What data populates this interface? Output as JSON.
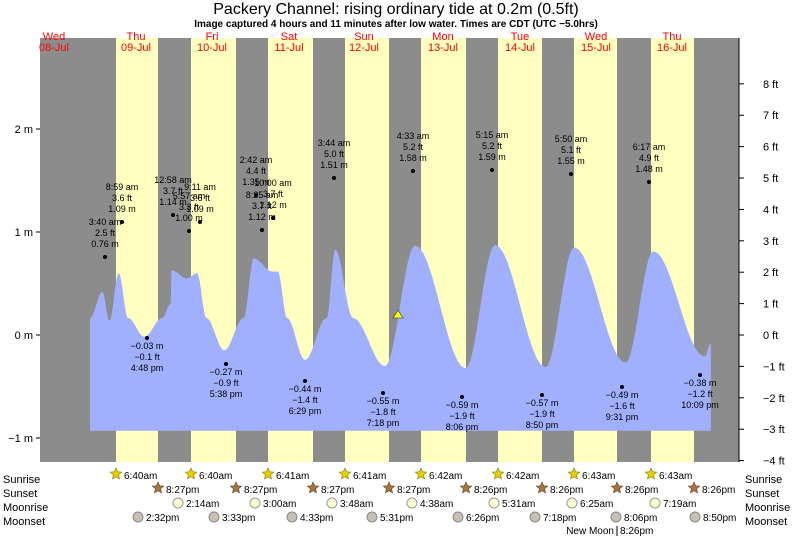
{
  "title": "Packery Channel: rising  ordinary tide at 0.2m (0.5ft)",
  "subtitle": "Image captured 4 hours and 11 minutes after low water. Times are CDT (UTC −5.0hrs)",
  "colors": {
    "night": "#8c8c8c",
    "day": "#ffffc0",
    "tide": "#a0b0ff",
    "date": "#ff0000",
    "marker": "#ffff00"
  },
  "days": [
    {
      "dow": "Wed",
      "date": "08-Jul"
    },
    {
      "dow": "Thu",
      "date": "09-Jul"
    },
    {
      "dow": "Fri",
      "date": "10-Jul"
    },
    {
      "dow": "Sat",
      "date": "11-Jul"
    },
    {
      "dow": "Sun",
      "date": "12-Jul"
    },
    {
      "dow": "Mon",
      "date": "13-Jul"
    },
    {
      "dow": "Tue",
      "date": "14-Jul"
    },
    {
      "dow": "Wed",
      "date": "15-Jul"
    },
    {
      "dow": "Thu",
      "date": "16-Jul"
    }
  ],
  "labels": {
    "sunrise": "Sunrise",
    "sunset": "Sunset",
    "moonrise": "Moonrise",
    "moonset": "Moonset",
    "new_moon": "New Moon",
    "new_moon_time": "8:26pm"
  },
  "sunrise": [
    "6:40am",
    "6:40am",
    "6:41am",
    "6:41am",
    "6:42am",
    "6:42am",
    "6:43am",
    "6:43am"
  ],
  "sunset": [
    "8:27pm",
    "8:27pm",
    "8:27pm",
    "8:27pm",
    "8:26pm",
    "8:26pm",
    "8:26pm",
    "8:26pm"
  ],
  "moonrise": [
    "2:14am",
    "3:00am",
    "3:48am",
    "4:38am",
    "5:31am",
    "6:25am",
    "7:19am"
  ],
  "moonset": [
    "2:32pm",
    "3:33pm",
    "4:33pm",
    "5:31pm",
    "6:26pm",
    "7:18pm",
    "8:06pm",
    "8:50pm"
  ],
  "chart_data": {
    "type": "area",
    "ylabel_left": "m",
    "ylabel_right": "ft",
    "ylim_m": [
      -1.2,
      2.6
    ],
    "left_ticks": [
      "−1 m",
      "0 m",
      "1 m",
      "2 m"
    ],
    "right_ticks": [
      "−4 ft",
      "−3 ft",
      "−2 ft",
      "−1 ft",
      "0 ft",
      "1 ft",
      "2 ft",
      "3 ft",
      "4 ft",
      "5 ft",
      "6 ft",
      "7 ft",
      "8 ft"
    ],
    "current": {
      "time": "12:10pm Mon 13-Jul",
      "height_m": 0.2
    },
    "extremes": [
      {
        "type": "high",
        "day": "Wed",
        "time": "3:40 am",
        "m": "0.76 m",
        "ft": "2.5 ft",
        "v": 0.76
      },
      {
        "type": "high",
        "day": "Thu",
        "time": "8:59 am",
        "m": "1.09 m",
        "ft": "3.6 ft",
        "v": 1.09
      },
      {
        "type": "low",
        "day": "Thu",
        "time": "4:48 pm",
        "m": "−0.03 m",
        "ft": "−0.1 ft",
        "v": -0.03
      },
      {
        "type": "high",
        "day": "Thu",
        "time": "12:58 am",
        "m": "1.14 m",
        "ft": "3.7 ft",
        "v": 1.14
      },
      {
        "type": "high",
        "day": "Fri",
        "time": "5:57 am",
        "m": "1.00 m",
        "ft": "3.3 ft",
        "v": 1.0
      },
      {
        "type": "high",
        "day": "Fri",
        "time": "9:11 am",
        "m": "1.09 m",
        "ft": "3.6 ft",
        "v": 1.09
      },
      {
        "type": "low",
        "day": "Fri",
        "time": "5:38 pm",
        "m": "−0.27 m",
        "ft": "−0.9 ft",
        "v": -0.27
      },
      {
        "type": "high",
        "day": "Sat",
        "time": "2:42 am",
        "m": "1.35 m",
        "ft": "4.4 ft",
        "v": 1.35
      },
      {
        "type": "high",
        "day": "Sat",
        "time": "8:25 am",
        "m": "1.12 m",
        "ft": "3.7 ft",
        "v": 1.12
      },
      {
        "type": "high",
        "day": "Sat",
        "time": "10:00 am",
        "m": "1.12 m",
        "ft": "3.7 ft",
        "v": 1.12
      },
      {
        "type": "low",
        "day": "Sat",
        "time": "6:29 pm",
        "m": "−0.44 m",
        "ft": "−1.4 ft",
        "v": -0.44
      },
      {
        "type": "high",
        "day": "Sun",
        "time": "3:44 am",
        "m": "1.51 m",
        "ft": "5.0 ft",
        "v": 1.51
      },
      {
        "type": "low",
        "day": "Sun",
        "time": "7:18 pm",
        "m": "−0.55 m",
        "ft": "−1.8 ft",
        "v": -0.55
      },
      {
        "type": "high",
        "day": "Mon",
        "time": "4:33 am",
        "m": "1.58 m",
        "ft": "5.2 ft",
        "v": 1.58
      },
      {
        "type": "low",
        "day": "Mon",
        "time": "8:06 pm",
        "m": "−0.59 m",
        "ft": "−1.9 ft",
        "v": -0.59
      },
      {
        "type": "high",
        "day": "Tue",
        "time": "5:15 am",
        "m": "1.59 m",
        "ft": "5.2 ft",
        "v": 1.59
      },
      {
        "type": "low",
        "day": "Tue",
        "time": "8:50 pm",
        "m": "−0.57 m",
        "ft": "−1.9 ft",
        "v": -0.57
      },
      {
        "type": "high",
        "day": "Wed",
        "time": "5:50 am",
        "m": "1.55 m",
        "ft": "5.1 ft",
        "v": 1.55
      },
      {
        "type": "low",
        "day": "Wed",
        "time": "9:31 pm",
        "m": "−0.49 m",
        "ft": "−1.6 ft",
        "v": -0.49
      },
      {
        "type": "high",
        "day": "Thu",
        "time": "6:17 am",
        "m": "1.48 m",
        "ft": "4.9 ft",
        "v": 1.48
      },
      {
        "type": "low",
        "day": "Thu",
        "time": "10:09 pm",
        "m": "−0.38 m",
        "ft": "−1.2 ft",
        "v": -0.38
      }
    ]
  }
}
